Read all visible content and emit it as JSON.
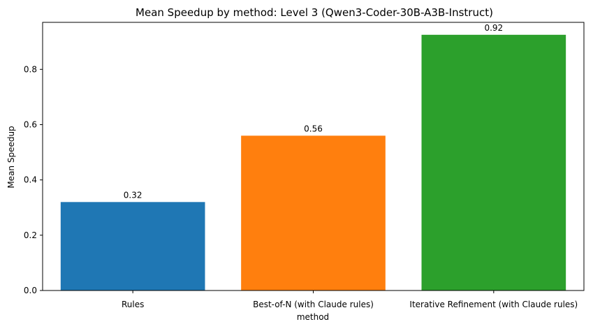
{
  "chart_data": {
    "type": "bar",
    "title": "Mean Speedup by method: Level 3 (Qwen3-Coder-30B-A3B-Instruct)",
    "xlabel": "method",
    "ylabel": "Mean Speedup",
    "categories": [
      "Rules",
      "Best-of-N (with Claude rules)",
      "Iterative Refinement (with Claude rules)"
    ],
    "values": [
      0.32,
      0.56,
      0.925
    ],
    "data_labels": [
      "0.32",
      "0.56",
      "0.92"
    ],
    "colors": [
      "#1f77b4",
      "#ff7f0e",
      "#2ca02c"
    ],
    "ylim": [
      0,
      0.97
    ],
    "yticks": [
      0.0,
      0.2,
      0.4,
      0.6,
      0.8
    ],
    "ytick_labels": [
      "0.0",
      "0.2",
      "0.4",
      "0.6",
      "0.8"
    ],
    "grid": false,
    "legend": "none"
  }
}
